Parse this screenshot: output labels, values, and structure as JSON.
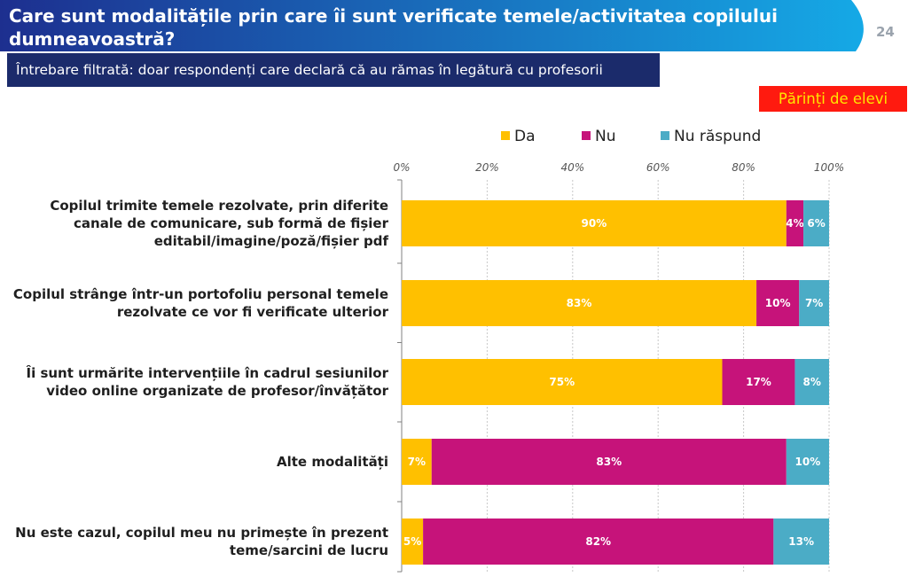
{
  "header": {
    "title": "Care sunt modalitățile prin care îi sunt verificate temele/activitatea copilului dumneavoastră?",
    "page_number": "24",
    "subtitle": "Întrebare filtrată: doar respondenți care declară că au rămas în legătură cu profesorii",
    "audience": "Părinți de elevi"
  },
  "colors": {
    "header_gradient_left": "#1d2f8f",
    "header_gradient_right": "#15a9e6",
    "subtitle_bg": "#1b2b6b",
    "badge_bg": "#ff1a0f",
    "badge_text": "#ffe600",
    "da": "#ffc000",
    "nu": "#c6137a",
    "nu_raspund": "#4bacc6"
  },
  "chart_data": {
    "type": "bar",
    "orientation": "horizontal",
    "stacked": true,
    "categories": [
      "Copilul trimite temele rezolvate, prin diferite canale de comunicare, sub formă de fișier editabil/imagine/poză/fișier pdf",
      "Copilul strânge într-un portofoliu personal temele rezolvate ce vor fi verificate ulterior",
      "Îi sunt urmărite intervențiile în cadrul sesiunilor video online organizate de profesor/învățător",
      "Alte modalități",
      "Nu este cazul, copilul meu nu primește în prezent teme/sarcini de lucru"
    ],
    "category_lines": [
      [
        "Copilul trimite temele rezolvate, prin diferite",
        "canale de comunicare, sub formă de fișier",
        "editabil/imagine/poză/fișier pdf"
      ],
      [
        "Copilul strânge într-un portofoliu personal temele",
        "rezolvate ce vor fi verificate ulterior"
      ],
      [
        "Îi sunt urmărite intervențiile în cadrul sesiunilor",
        "video online organizate de profesor/învățător"
      ],
      [
        "Alte modalități"
      ],
      [
        "Nu este cazul, copilul meu nu primește în prezent",
        "teme/sarcini de lucru"
      ]
    ],
    "series": [
      {
        "name": "Da",
        "color": "#ffc000",
        "values": [
          90,
          83,
          75,
          7,
          5
        ],
        "labels": [
          "90%",
          "83%",
          "75%",
          "7%",
          "5%"
        ]
      },
      {
        "name": "Nu",
        "color": "#c6137a",
        "values": [
          4,
          10,
          17,
          83,
          82
        ],
        "labels": [
          "4%",
          "10%",
          "17%",
          "83%",
          "82%"
        ]
      },
      {
        "name": "Nu răspund",
        "color": "#4bacc6",
        "values": [
          6,
          7,
          8,
          10,
          13
        ],
        "labels": [
          "6%",
          "7%",
          "8%",
          "10%",
          "13%"
        ]
      }
    ],
    "xlim": [
      0,
      100
    ],
    "ticks": [
      "0%",
      "20%",
      "40%",
      "60%",
      "80%",
      "100%"
    ],
    "tick_values": [
      0,
      20,
      40,
      60,
      80,
      100
    ],
    "legend_position": "top",
    "grid": true
  }
}
